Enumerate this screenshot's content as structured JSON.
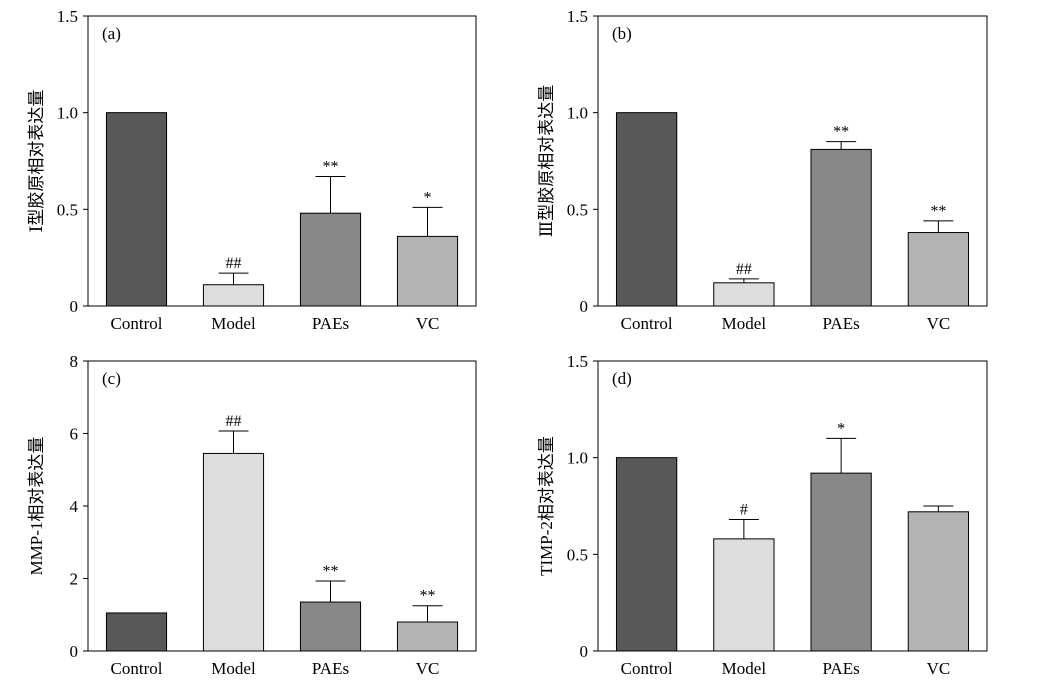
{
  "colors": {
    "Control": "#5a5758",
    "Model": "#dcdddd",
    "PAEs": "#878787",
    "VC": "#b3b3b3",
    "axis": "#000000"
  },
  "chart_data": [
    {
      "type": "bar",
      "panel_label": "(a)",
      "ylabel": "Ⅰ型胶原相对表达量",
      "categories": [
        "Control",
        "Model",
        "PAEs",
        "VC"
      ],
      "values": [
        1.0,
        0.11,
        0.48,
        0.36
      ],
      "errors": [
        0,
        0.06,
        0.19,
        0.15
      ],
      "annotations": [
        "",
        "##",
        "**",
        "*"
      ],
      "ylim": [
        0,
        1.5
      ],
      "yticks": [
        0,
        0.5,
        1.0,
        1.5
      ],
      "ytick_labels": [
        "0",
        "0.5",
        "1.0",
        "1.5"
      ]
    },
    {
      "type": "bar",
      "panel_label": "(b)",
      "ylabel": "Ⅲ型胶原相对表达量",
      "categories": [
        "Control",
        "Model",
        "PAEs",
        "VC"
      ],
      "values": [
        1.0,
        0.12,
        0.81,
        0.38
      ],
      "errors": [
        0,
        0.02,
        0.04,
        0.06
      ],
      "annotations": [
        "",
        "##",
        "**",
        "**"
      ],
      "ylim": [
        0,
        1.5
      ],
      "yticks": [
        0,
        0.5,
        1.0,
        1.5
      ],
      "ytick_labels": [
        "0",
        "0.5",
        "1.0",
        "1.5"
      ]
    },
    {
      "type": "bar",
      "panel_label": "(c)",
      "ylabel": "MMP-1相对表达量",
      "categories": [
        "Control",
        "Model",
        "PAEs",
        "VC"
      ],
      "values": [
        1.05,
        5.45,
        1.35,
        0.8
      ],
      "errors": [
        0,
        0.62,
        0.58,
        0.45
      ],
      "annotations": [
        "",
        "##",
        "**",
        "**"
      ],
      "ylim": [
        0,
        8
      ],
      "yticks": [
        0,
        2,
        4,
        6,
        8
      ],
      "ytick_labels": [
        "0",
        "2",
        "4",
        "6",
        "8"
      ]
    },
    {
      "type": "bar",
      "panel_label": "(d)",
      "ylabel": "TIMP-2相对表达量",
      "categories": [
        "Control",
        "Model",
        "PAEs",
        "VC"
      ],
      "values": [
        1.0,
        0.58,
        0.92,
        0.72
      ],
      "errors": [
        0,
        0.1,
        0.18,
        0.03
      ],
      "annotations": [
        "",
        "#",
        "*",
        ""
      ],
      "ylim": [
        0,
        1.5
      ],
      "yticks": [
        0,
        0.5,
        1.0,
        1.5
      ],
      "ytick_labels": [
        "0",
        "0.5",
        "1.0",
        "1.5"
      ]
    }
  ]
}
